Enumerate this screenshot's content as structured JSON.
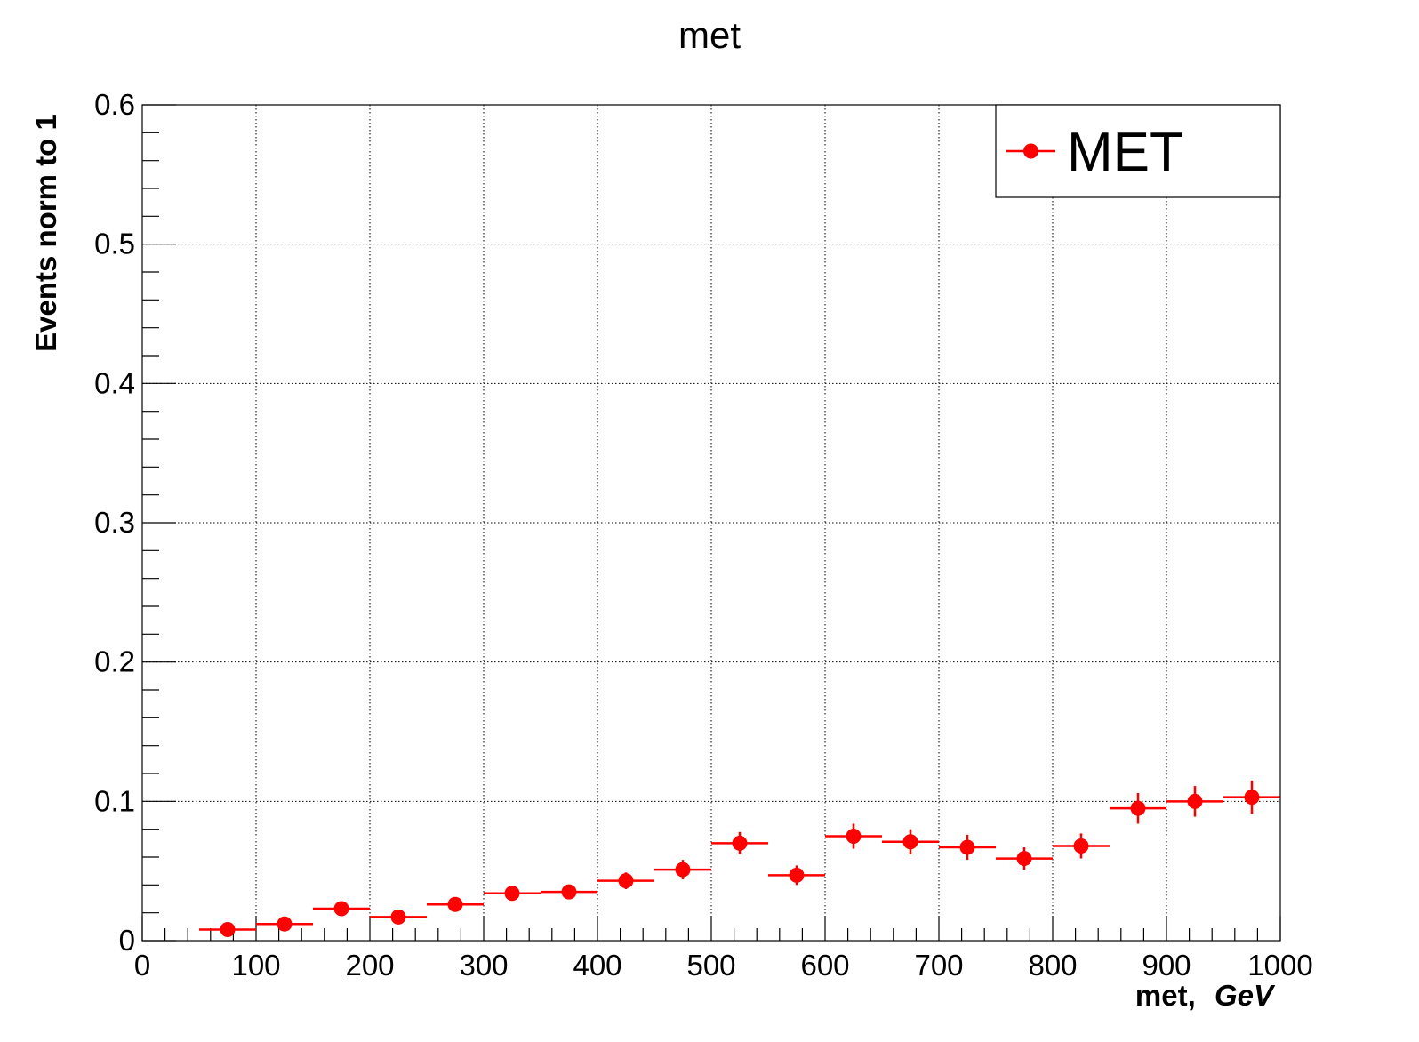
{
  "chart_data": {
    "type": "scatter",
    "title": "met",
    "xlabel": "met,",
    "xlabel_unit": "GeV",
    "ylabel": "Events norm to 1",
    "xlim": [
      0,
      1000
    ],
    "ylim": [
      0,
      0.6
    ],
    "grid": true,
    "legend_position": "top-right",
    "x_ticks": [
      "0",
      "100",
      "200",
      "300",
      "400",
      "500",
      "600",
      "700",
      "800",
      "900",
      "1000"
    ],
    "y_ticks": [
      "0",
      "0.1",
      "0.2",
      "0.3",
      "0.4",
      "0.5",
      "0.6"
    ],
    "series": [
      {
        "name": "MET",
        "color": "#ff0000",
        "bin_width": 50,
        "x": [
          75,
          125,
          175,
          225,
          275,
          325,
          375,
          425,
          475,
          525,
          575,
          625,
          675,
          725,
          775,
          825,
          875,
          925,
          975
        ],
        "y": [
          0.008,
          0.012,
          0.023,
          0.017,
          0.026,
          0.034,
          0.035,
          0.043,
          0.051,
          0.07,
          0.047,
          0.075,
          0.071,
          0.067,
          0.059,
          0.068,
          0.095,
          0.1,
          0.103
        ],
        "yerr": [
          0.002,
          0.003,
          0.004,
          0.004,
          0.004,
          0.005,
          0.005,
          0.006,
          0.007,
          0.008,
          0.007,
          0.009,
          0.009,
          0.009,
          0.008,
          0.009,
          0.011,
          0.011,
          0.012
        ]
      }
    ]
  }
}
